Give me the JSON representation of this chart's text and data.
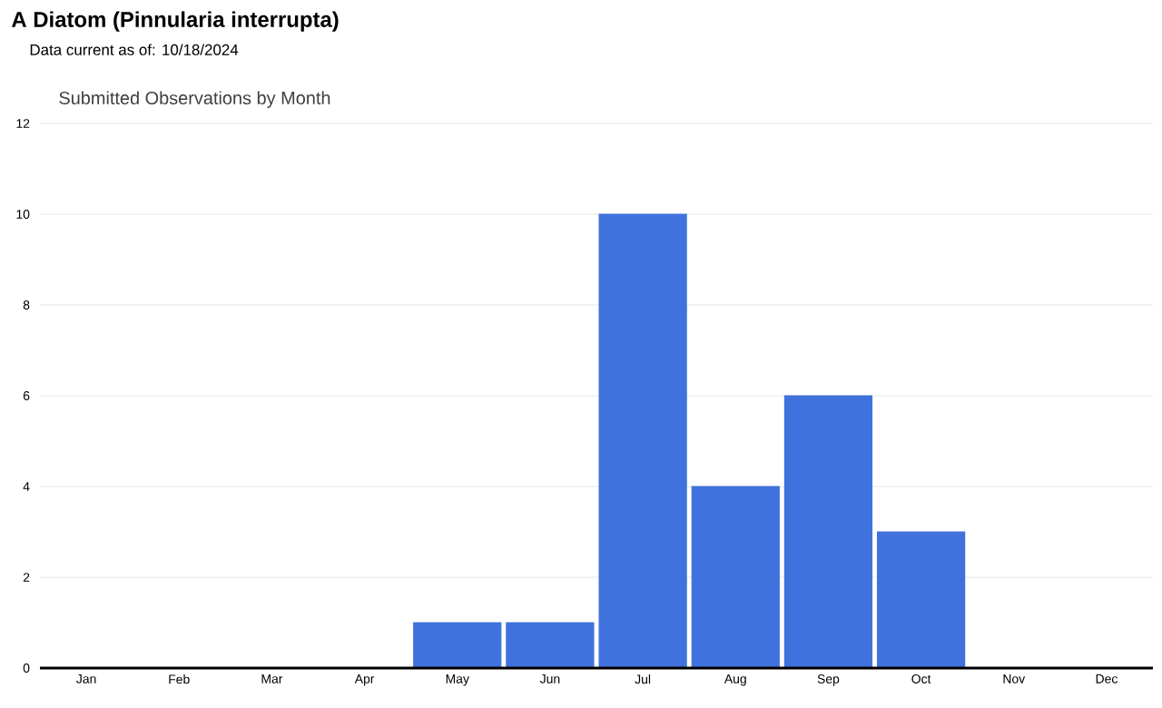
{
  "chart_data": {
    "type": "bar",
    "title": "A Diatom   (Pinnularia interrupta)",
    "subtitle": "Submitted Observations by Month",
    "annotations": [
      "Data current as of: 10/18/2024"
    ],
    "categories": [
      "Jan",
      "Feb",
      "Mar",
      "Apr",
      "May",
      "Jun",
      "Jul",
      "Aug",
      "Sep",
      "Oct",
      "Nov",
      "Dec"
    ],
    "values": [
      0,
      0,
      0,
      0,
      1,
      1,
      10,
      4,
      6,
      3,
      0,
      0
    ],
    "color": "#3f72dc",
    "ylim": [
      0,
      12
    ],
    "yticks": [
      0,
      2,
      4,
      6,
      8,
      10,
      12
    ],
    "grid": "y"
  }
}
